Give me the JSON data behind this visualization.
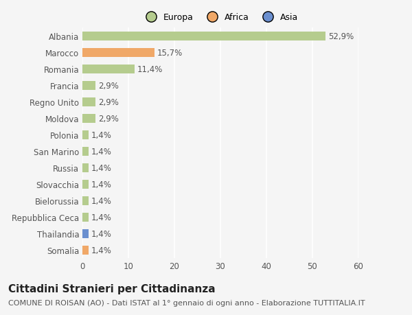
{
  "categories": [
    "Albania",
    "Marocco",
    "Romania",
    "Francia",
    "Regno Unito",
    "Moldova",
    "Polonia",
    "San Marino",
    "Russia",
    "Slovacchia",
    "Bielorussia",
    "Repubblica Ceca",
    "Thailandia",
    "Somalia"
  ],
  "values": [
    52.9,
    15.7,
    11.4,
    2.9,
    2.9,
    2.9,
    1.4,
    1.4,
    1.4,
    1.4,
    1.4,
    1.4,
    1.4,
    1.4
  ],
  "labels": [
    "52,9%",
    "15,7%",
    "11,4%",
    "2,9%",
    "2,9%",
    "2,9%",
    "1,4%",
    "1,4%",
    "1,4%",
    "1,4%",
    "1,4%",
    "1,4%",
    "1,4%",
    "1,4%"
  ],
  "continents": [
    "Europa",
    "Africa",
    "Europa",
    "Europa",
    "Europa",
    "Europa",
    "Europa",
    "Europa",
    "Europa",
    "Europa",
    "Europa",
    "Europa",
    "Asia",
    "Africa"
  ],
  "colors": {
    "Europa": "#b5cc8e",
    "Africa": "#f0a868",
    "Asia": "#6b8fcf"
  },
  "legend_labels": [
    "Europa",
    "Africa",
    "Asia"
  ],
  "legend_colors": [
    "#b5cc8e",
    "#f0a868",
    "#6b8fcf"
  ],
  "xlim": [
    0,
    60
  ],
  "xticks": [
    0,
    10,
    20,
    30,
    40,
    50,
    60
  ],
  "title": "Cittadini Stranieri per Cittadinanza",
  "subtitle": "COMUNE DI ROISAN (AO) - Dati ISTAT al 1° gennaio di ogni anno - Elaborazione TUTTITALIA.IT",
  "bg_color": "#f5f5f5",
  "grid_color": "#ffffff",
  "label_fontsize": 8.5,
  "value_fontsize": 8.5,
  "title_fontsize": 11,
  "subtitle_fontsize": 8
}
